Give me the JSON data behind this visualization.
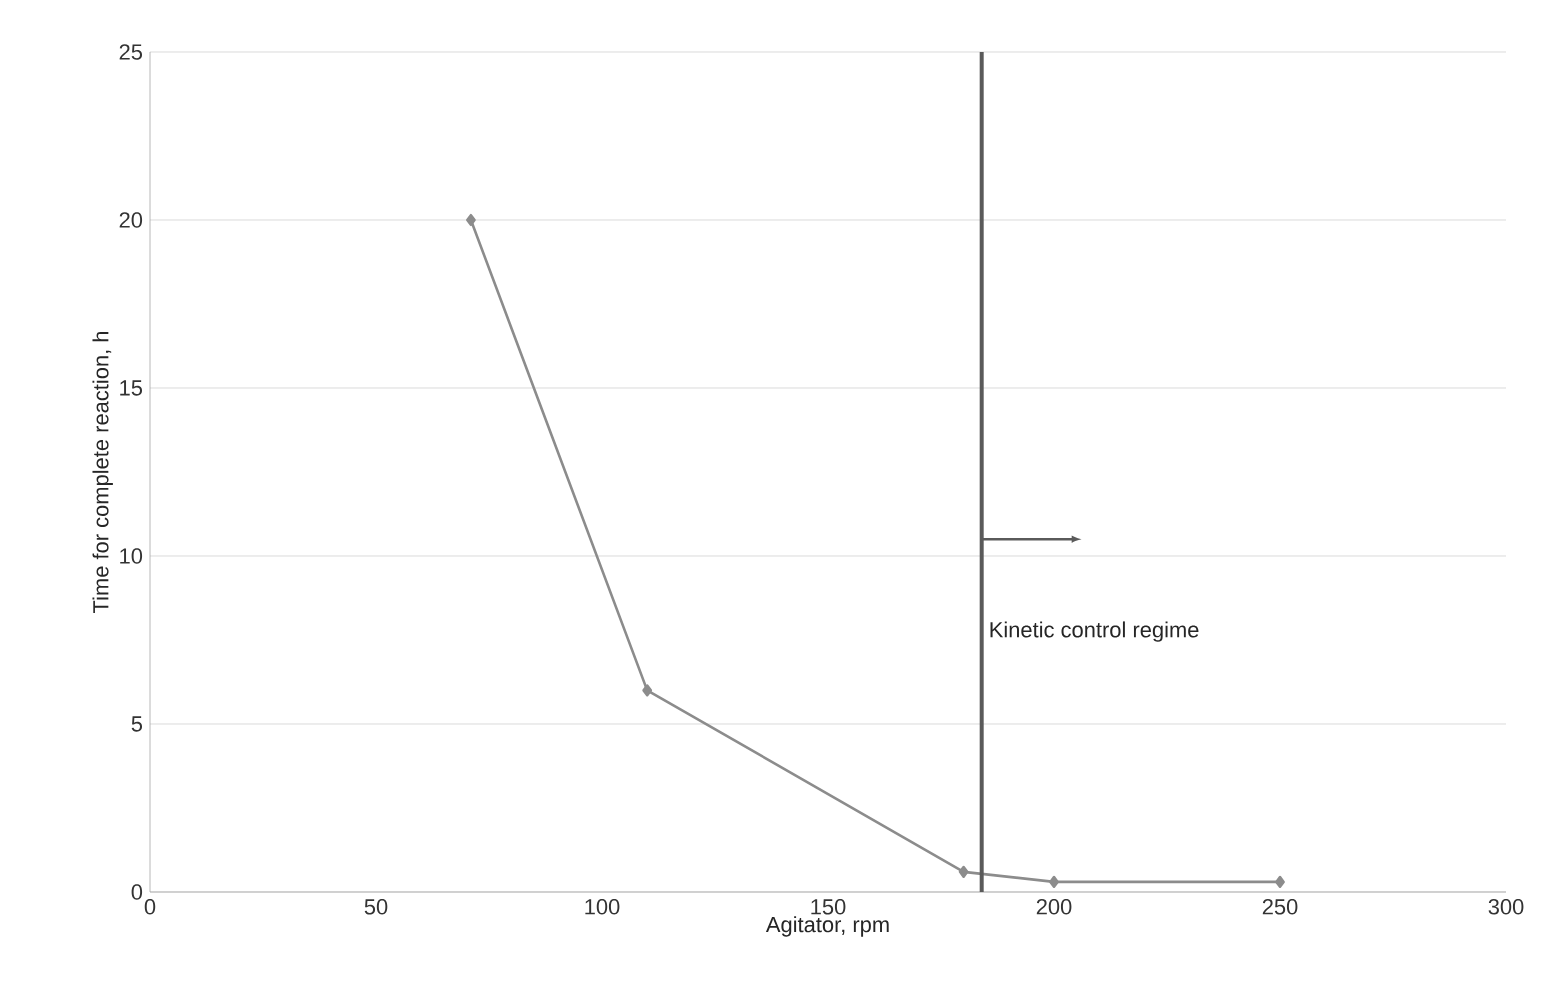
{
  "chart_data": {
    "type": "line",
    "xlabel": "Agitator, rpm",
    "ylabel": "Time for complete reaction, h",
    "x": [
      71,
      110,
      180,
      200,
      250
    ],
    "series": [
      {
        "color": "#8c8c8c",
        "values": [
          20,
          6,
          0.6,
          0.3,
          0.3
        ]
      }
    ],
    "xlim": [
      0,
      300
    ],
    "xticks": [
      0,
      50,
      100,
      150,
      200,
      250,
      300
    ],
    "ylim": [
      0,
      25
    ],
    "yticks": [
      0,
      5,
      10,
      15,
      20,
      25
    ],
    "grid": "y",
    "marker": "diamond",
    "line_style": "solid",
    "ref_lines": [
      {
        "axis": "x",
        "value": 184,
        "label": "Kinetic control regime",
        "color": "#5a5a5a"
      }
    ]
  }
}
